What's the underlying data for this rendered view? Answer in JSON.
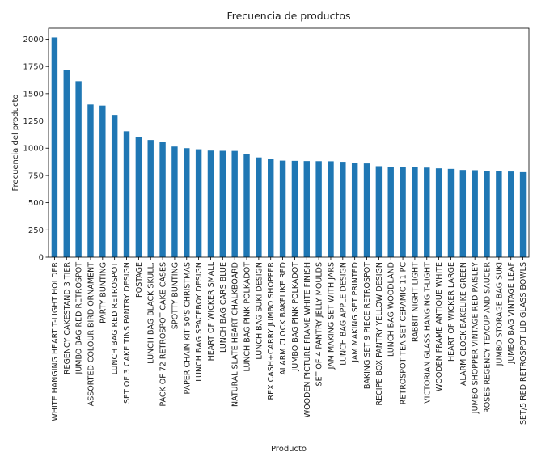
{
  "chart_data": {
    "type": "bar",
    "title": "Frecuencia de productos",
    "xlabel": "Producto",
    "ylabel": "Frecuencia del producto",
    "ylim": [
      0,
      2100
    ],
    "yticks": [
      0,
      250,
      500,
      750,
      1000,
      1250,
      1500,
      1750,
      2000
    ],
    "grid": false,
    "legend": "none",
    "bar_color": "#1f77b4",
    "categories": [
      "WHITE HANGING HEART T-LIGHT HOLDER",
      "REGENCY CAKESTAND 3 TIER",
      "JUMBO BAG RED RETROSPOT",
      "ASSORTED COLOUR BIRD ORNAMENT",
      "PARTY BUNTING",
      "LUNCH BAG RED RETROSPOT",
      "SET OF 3 CAKE TINS PANTRY DESIGN",
      "POSTAGE",
      "LUNCH BAG  BLACK SKULL.",
      "PACK OF 72 RETROSPOT CAKE CASES",
      "SPOTTY BUNTING",
      "PAPER CHAIN KIT 50'S CHRISTMAS",
      "LUNCH BAG SPACEBOY DESIGN",
      "HEART OF WICKER SMALL",
      "LUNCH BAG CARS BLUE",
      "NATURAL SLATE HEART CHALKBOARD",
      "LUNCH BAG PINK POLKADOT",
      "LUNCH BAG SUKI DESIGN",
      "REX CASH+CARRY JUMBO SHOPPER",
      "ALARM CLOCK BAKELIKE RED",
      "JUMBO BAG PINK POLKADOT",
      "WOODEN PICTURE FRAME WHITE FINISH",
      "SET OF 4 PANTRY JELLY MOULDS",
      "JAM MAKING SET WITH JARS",
      "LUNCH BAG APPLE DESIGN",
      "JAM MAKING SET PRINTED",
      "BAKING SET 9 PIECE RETROSPOT",
      "RECIPE BOX PANTRY YELLOW DESIGN",
      "LUNCH BAG WOODLAND",
      "RETROSPOT TEA SET CERAMIC 11 PC",
      "RABBIT NIGHT LIGHT",
      "VICTORIAN GLASS HANGING T-LIGHT",
      "WOODEN FRAME ANTIQUE WHITE",
      "HEART OF WICKER LARGE",
      "ALARM CLOCK BAKELIKE GREEN",
      "JUMBO SHOPPER VINTAGE RED PAISLEY",
      "ROSES REGENCY TEACUP AND SAUCER",
      "JUMBO STORAGE BAG SUKI",
      "JUMBO BAG VINTAGE LEAF",
      "SET/5 RED RETROSPOT LID GLASS BOWLS"
    ],
    "values": [
      2015,
      1715,
      1615,
      1400,
      1390,
      1305,
      1155,
      1100,
      1075,
      1055,
      1015,
      1000,
      990,
      978,
      976,
      975,
      945,
      915,
      900,
      886,
      884,
      882,
      881,
      880,
      875,
      868,
      860,
      835,
      830,
      829,
      825,
      822,
      815,
      810,
      800,
      798,
      794,
      790,
      786,
      780
    ]
  }
}
